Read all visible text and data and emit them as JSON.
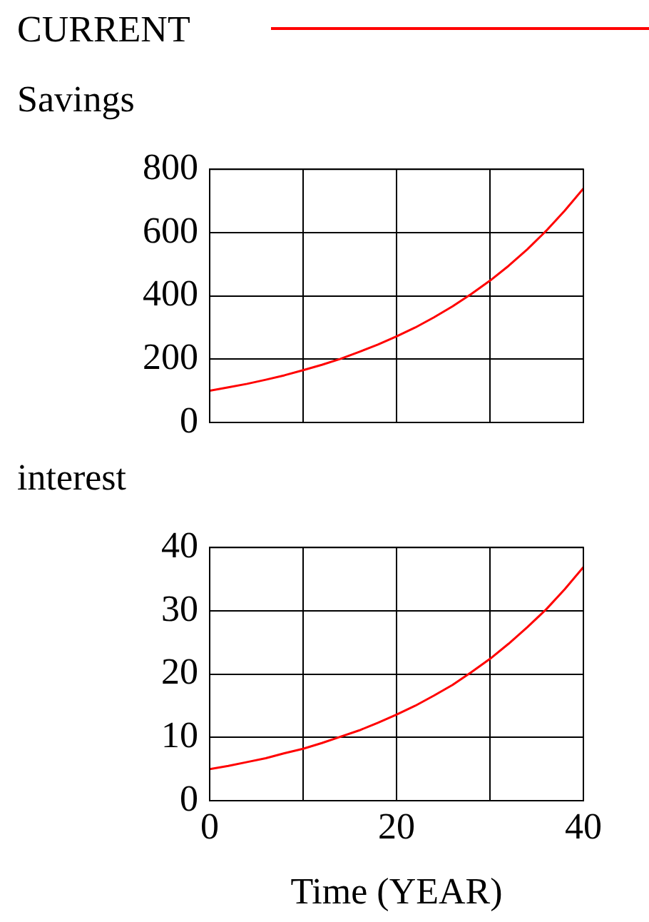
{
  "chart_data": [
    {
      "type": "line",
      "ylabel": "Savings",
      "legend": "top",
      "grid": true,
      "marker": "none",
      "line_style": "solid",
      "tick_labels": "y",
      "x": [
        0,
        2,
        4,
        6,
        8,
        10,
        12,
        14,
        16,
        18,
        20,
        22,
        24,
        26,
        28,
        30,
        32,
        34,
        36,
        38,
        40
      ],
      "xlim": [
        0,
        40
      ],
      "xticks": [
        {
          "value": 0,
          "label": null
        },
        {
          "value": 10,
          "label": null
        },
        {
          "value": 20,
          "label": null
        },
        {
          "value": 30,
          "label": null
        },
        {
          "value": 40,
          "label": null
        }
      ],
      "ylim": [
        0,
        800
      ],
      "yticks": [
        0,
        200,
        400,
        600,
        800
      ],
      "series": [
        {
          "name": "CURRENT",
          "color": "#ff0000",
          "values": [
            100,
            111,
            122,
            135,
            149,
            165,
            182,
            201,
            223,
            246,
            272,
            300,
            332,
            367,
            406,
            448,
            495,
            547,
            605,
            669,
            739
          ]
        }
      ]
    },
    {
      "type": "line",
      "ylabel": "interest",
      "xlabel": "Time (YEAR)",
      "grid": true,
      "marker": "none",
      "line_style": "solid",
      "x": [
        0,
        2,
        4,
        6,
        8,
        10,
        12,
        14,
        16,
        18,
        20,
        22,
        24,
        26,
        28,
        30,
        32,
        34,
        36,
        38,
        40
      ],
      "xlim": [
        0,
        40
      ],
      "xticks": [
        0,
        {
          "value": 10,
          "label": null
        },
        20,
        {
          "value": 30,
          "label": null
        },
        40
      ],
      "ylim": [
        0,
        40
      ],
      "yticks": [
        0,
        10,
        20,
        30,
        40
      ],
      "series": [
        {
          "color": "#ff0000",
          "values": [
            5,
            5.5,
            6.1,
            6.7,
            7.5,
            8.2,
            9.1,
            10.1,
            11.1,
            12.3,
            13.6,
            15,
            16.6,
            18.3,
            20.3,
            22.4,
            24.8,
            27.4,
            30.2,
            33.4,
            36.9
          ]
        }
      ]
    }
  ]
}
